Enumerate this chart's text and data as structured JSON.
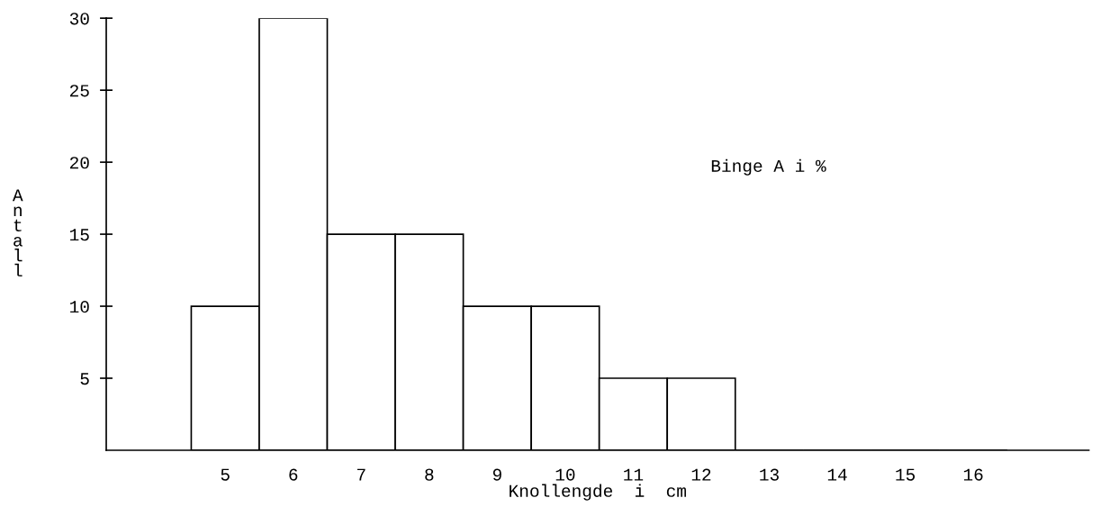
{
  "chart_data": {
    "type": "bar",
    "xlabel": "Knollengde  i  cm",
    "ylabel": "Antall",
    "annotations": [
      "Binge A i %"
    ],
    "categories": [
      "5",
      "6",
      "7",
      "8",
      "9",
      "10",
      "11",
      "12",
      "13",
      "14",
      "15",
      "16"
    ],
    "values": [
      10,
      30,
      15,
      15,
      10,
      10,
      5,
      5,
      0,
      0,
      0,
      0
    ],
    "color": "#ffffff",
    "ylim": [
      0,
      30
    ],
    "yticks": [
      {
        "value": 5,
        "label": "5"
      },
      {
        "value": 10,
        "label": "10"
      },
      {
        "value": 15,
        "label": "15"
      },
      {
        "value": 20,
        "label": "20"
      },
      {
        "value": 25,
        "label": "25"
      },
      {
        "value": 30,
        "label": "30"
      }
    ],
    "grid": false,
    "legend": false
  }
}
